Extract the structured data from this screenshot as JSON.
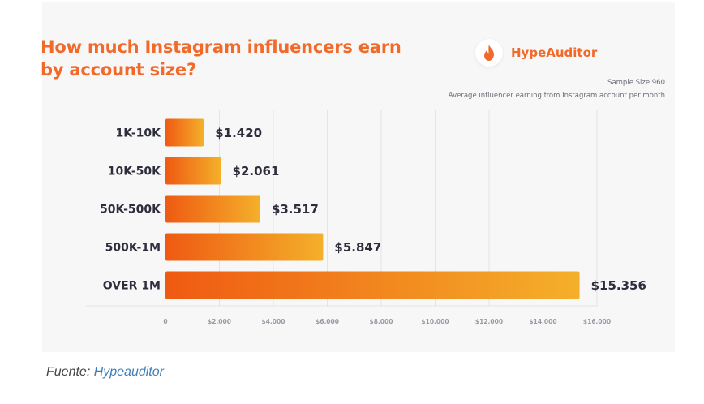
{
  "caption": {
    "prefix": "Fuente: ",
    "link_text": "Hypeauditor"
  },
  "brand": {
    "name": "HypeAuditor",
    "icon": "flame-icon",
    "color": "#f26a2a"
  },
  "sample_size": "Sample Size 960",
  "chart_data": {
    "type": "bar",
    "orientation": "horizontal",
    "title": "How much Instagram influencers earn by account size?",
    "subtitle": "Average influencer earning from Instagram account per month",
    "categories": [
      "1K-10K",
      "10K-50K",
      "50K-500K",
      "500K-1M",
      "OVER 1M"
    ],
    "values": [
      1420,
      2061,
      3517,
      5847,
      15356
    ],
    "value_labels": [
      "$1.420",
      "$2.061",
      "$3.517",
      "$5.847",
      "$15.356"
    ],
    "x_ticks": [
      0,
      2000,
      4000,
      6000,
      8000,
      10000,
      12000,
      14000,
      16000
    ],
    "x_tick_labels": [
      "0",
      "$2.000",
      "$4.000",
      "$6.000",
      "$8.000",
      "$10.000",
      "$12.000",
      "$14.000",
      "$16.000"
    ],
    "xlim": [
      0,
      16000
    ],
    "grid": true,
    "bar_gradient": [
      "#ef5a12",
      "#f4b02a"
    ]
  }
}
